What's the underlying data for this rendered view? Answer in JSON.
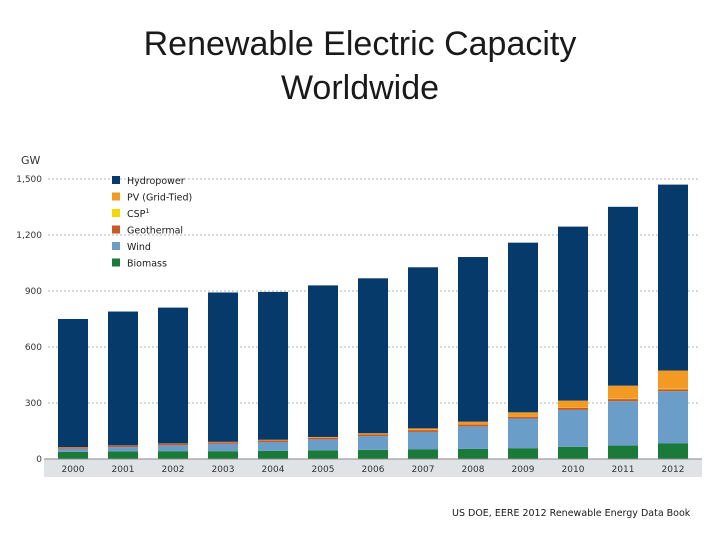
{
  "slide": {
    "title_line1": "Renewable Electric Capacity",
    "title_line2": "Worldwide",
    "source": "US DOE, EERE 2012  Renewable Energy Data Book"
  },
  "chart_data": {
    "type": "bar",
    "stacked": true,
    "unit_label": "GW",
    "categories": [
      "2000",
      "2001",
      "2002",
      "2003",
      "2004",
      "2005",
      "2006",
      "2007",
      "2008",
      "2009",
      "2010",
      "2011",
      "2012"
    ],
    "ylim": [
      0,
      1500
    ],
    "yticks": [
      0,
      300,
      600,
      900,
      1200,
      1500
    ],
    "ytick_labels": [
      "0",
      "300",
      "600",
      "900",
      "1,200",
      "1,500"
    ],
    "grid": true,
    "legend_position": "top-left",
    "series": [
      {
        "name": "Biomass",
        "color": "#1a7a3a",
        "values": [
          38,
          40,
          42,
          42,
          44,
          46,
          49,
          51,
          54,
          58,
          65,
          72,
          83
        ]
      },
      {
        "name": "Wind",
        "color": "#6b9dc9",
        "values": [
          17,
          24,
          31,
          39,
          47,
          59,
          74,
          94,
          121,
          159,
          198,
          238,
          280
        ]
      },
      {
        "name": "Geothermal",
        "color": "#c85a28",
        "values": [
          8,
          8,
          8,
          9,
          9,
          9,
          9,
          10,
          10,
          10,
          11,
          11,
          11
        ]
      },
      {
        "name": "CSP",
        "name_superscript": "1",
        "color": "#f5d800",
        "values": [
          0,
          0,
          0,
          0,
          0,
          0,
          0,
          1,
          1,
          1,
          1,
          2,
          3
        ]
      },
      {
        "name": "PV (Grid-Tied)",
        "color": "#f39a24",
        "values": [
          1,
          1,
          2,
          2,
          3,
          4,
          6,
          8,
          14,
          22,
          38,
          70,
          97
        ]
      },
      {
        "name": "Hydropower",
        "color": "#053a6b",
        "values": [
          686,
          717,
          728,
          800,
          792,
          812,
          830,
          863,
          882,
          909,
          932,
          958,
          996
        ]
      }
    ],
    "legend_order": [
      "Hydropower",
      "PV (Grid-Tied)",
      "CSP",
      "Geothermal",
      "Wind",
      "Biomass"
    ]
  }
}
